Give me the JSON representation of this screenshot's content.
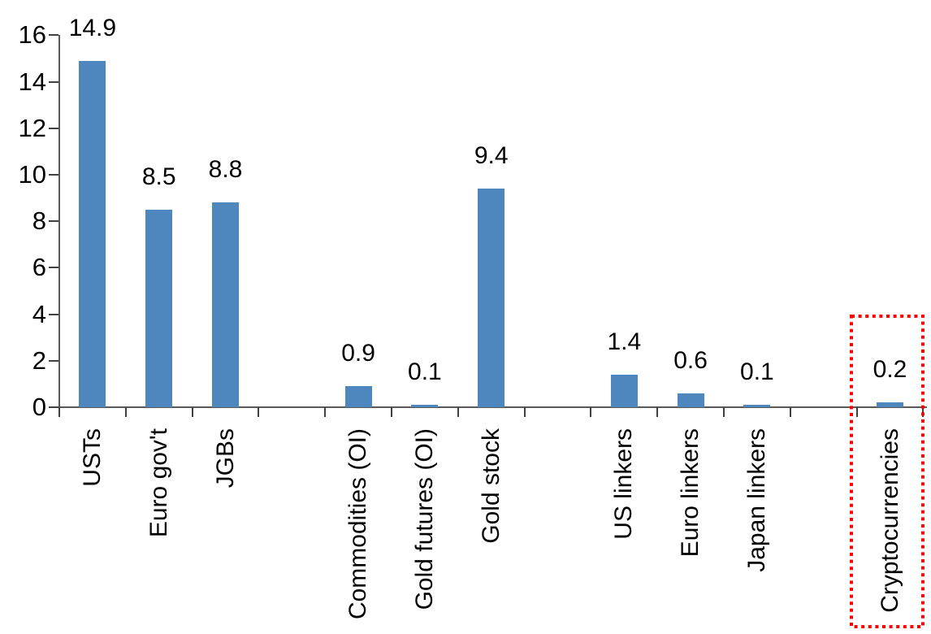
{
  "chart_data": {
    "type": "bar",
    "title": "",
    "xlabel": "",
    "ylabel": "",
    "categories": [
      "USTs",
      "Euro gov't",
      "JGBs",
      "",
      "Commodities (OI)",
      "Gold futures (OI)",
      "Gold stock",
      "",
      "US linkers",
      "Euro linkers",
      "Japan linkers",
      "",
      "Cryptocurrencies"
    ],
    "values": [
      14.9,
      8.5,
      8.8,
      null,
      0.9,
      0.1,
      9.4,
      null,
      1.4,
      0.6,
      0.1,
      null,
      0.2
    ],
    "data_labels": [
      "14.9",
      "8.5",
      "8.8",
      null,
      "0.9",
      "0.1",
      "9.4",
      null,
      "1.4",
      "0.6",
      "0.1",
      null,
      "0.2"
    ],
    "ylim": [
      0,
      16
    ],
    "yticks": [
      "0",
      "2",
      "4",
      "6",
      "8",
      "10",
      "12",
      "14",
      "16"
    ],
    "grid": false,
    "legend": false,
    "bar_color": "#4E86BE",
    "axis_color": "#595959",
    "text_color": "#000000",
    "highlight": {
      "category": "Cryptocurrencies",
      "shape": "dotted-rectangle",
      "color": "#FF0000"
    }
  }
}
